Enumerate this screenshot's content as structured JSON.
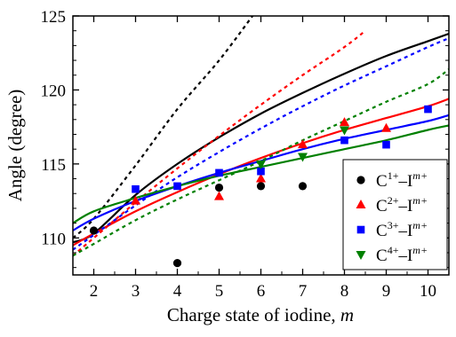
{
  "chart_data": {
    "type": "scatter",
    "title": "",
    "xlabel": "Charge state of iodine, ",
    "xlabel_var": "m",
    "ylabel": "Angle (degree)",
    "xlim": [
      1.5,
      10.5
    ],
    "ylim": [
      107.5,
      125
    ],
    "xticks": [
      2,
      3,
      4,
      5,
      6,
      7,
      8,
      9,
      10
    ],
    "yticks": [
      110,
      115,
      120,
      125
    ],
    "grid": false,
    "legend_position": "bottom-right",
    "series": [
      {
        "name": "C1+–Im+",
        "legend": {
          "base": "C",
          "charge": "1+",
          "dash": "–I",
          "sup": "m+"
        },
        "marker": "circle",
        "color": "#000000",
        "points": [
          [
            2,
            110.5
          ],
          [
            4,
            108.3
          ],
          [
            5,
            113.4
          ],
          [
            6,
            113.5
          ],
          [
            7,
            113.5
          ]
        ],
        "fit_solid": [
          [
            1.5,
            109.7
          ],
          [
            2,
            110.3
          ],
          [
            3,
            112.9
          ],
          [
            4,
            115.0
          ],
          [
            5,
            116.8
          ],
          [
            6,
            118.4
          ],
          [
            7,
            119.8
          ],
          [
            8,
            121.1
          ],
          [
            9,
            122.3
          ],
          [
            10,
            123.3
          ],
          [
            10.5,
            123.8
          ]
        ],
        "fit_dotted": [
          [
            1.5,
            110.0
          ],
          [
            2,
            111.3
          ],
          [
            3,
            114.9
          ],
          [
            4,
            118.7
          ],
          [
            5,
            122.0
          ],
          [
            5.8,
            125.0
          ]
        ]
      },
      {
        "name": "C2+–Im+",
        "legend": {
          "base": "C",
          "charge": "2+",
          "dash": "–I",
          "sup": "m+"
        },
        "marker": "triangle-up",
        "color": "#ff0000",
        "points": [
          [
            3,
            112.5
          ],
          [
            5,
            112.8
          ],
          [
            6,
            114.0
          ],
          [
            7,
            116.3
          ],
          [
            8,
            117.8
          ],
          [
            9,
            117.4
          ]
        ],
        "fit_solid": [
          [
            1.5,
            109.5
          ],
          [
            2,
            110.3
          ],
          [
            3,
            111.8
          ],
          [
            4,
            113.1
          ],
          [
            5,
            114.3
          ],
          [
            6,
            115.4
          ],
          [
            7,
            116.4
          ],
          [
            8,
            117.3
          ],
          [
            9,
            118.1
          ],
          [
            10,
            118.9
          ],
          [
            10.5,
            119.4
          ]
        ],
        "fit_dotted": [
          [
            1.5,
            108.8
          ],
          [
            2,
            110.0
          ],
          [
            3,
            112.4
          ],
          [
            4,
            114.7
          ],
          [
            5,
            116.9
          ],
          [
            6,
            119.0
          ],
          [
            7,
            121.0
          ],
          [
            8,
            122.9
          ],
          [
            8.5,
            124.0
          ]
        ]
      },
      {
        "name": "C3+–Im+",
        "legend": {
          "base": "C",
          "charge": "3+",
          "dash": "–I",
          "sup": "m+"
        },
        "marker": "square",
        "color": "#0000ff",
        "points": [
          [
            3,
            113.3
          ],
          [
            4,
            113.5
          ],
          [
            5,
            114.4
          ],
          [
            6,
            114.5
          ],
          [
            8,
            116.6
          ],
          [
            9,
            116.3
          ],
          [
            10,
            118.7
          ]
        ],
        "fit_solid": [
          [
            1.5,
            110.5
          ],
          [
            2,
            111.3
          ],
          [
            3,
            112.5
          ],
          [
            4,
            113.5
          ],
          [
            5,
            114.4
          ],
          [
            6,
            115.2
          ],
          [
            7,
            116.0
          ],
          [
            8,
            116.7
          ],
          [
            9,
            117.3
          ],
          [
            10,
            117.9
          ],
          [
            10.5,
            118.3
          ]
        ],
        "fit_dotted": [
          [
            1.5,
            109.2
          ],
          [
            2,
            110.2
          ],
          [
            3,
            112.2
          ],
          [
            4,
            114.1
          ],
          [
            5,
            115.8
          ],
          [
            6,
            117.4
          ],
          [
            7,
            118.9
          ],
          [
            8,
            120.3
          ],
          [
            9,
            121.6
          ],
          [
            10,
            122.9
          ],
          [
            10.5,
            123.5
          ]
        ]
      },
      {
        "name": "C4+–Im+",
        "legend": {
          "base": "C",
          "charge": "4+",
          "dash": "–I",
          "sup": "m+"
        },
        "marker": "triangle-down",
        "color": "#008000",
        "points": [
          [
            6,
            115.0
          ],
          [
            7,
            115.5
          ],
          [
            8,
            117.3
          ]
        ],
        "fit_solid": [
          [
            1.5,
            111.0
          ],
          [
            2,
            111.8
          ],
          [
            3,
            112.7
          ],
          [
            4,
            113.5
          ],
          [
            5,
            114.2
          ],
          [
            6,
            114.8
          ],
          [
            7,
            115.4
          ],
          [
            8,
            116.0
          ],
          [
            9,
            116.6
          ],
          [
            10,
            117.3
          ],
          [
            10.5,
            117.6
          ]
        ],
        "fit_dotted": [
          [
            1.5,
            108.8
          ],
          [
            2,
            109.6
          ],
          [
            3,
            111.2
          ],
          [
            4,
            112.6
          ],
          [
            5,
            113.9
          ],
          [
            6,
            115.2
          ],
          [
            7,
            116.6
          ],
          [
            8,
            117.9
          ],
          [
            9,
            119.2
          ],
          [
            10,
            120.4
          ],
          [
            10.5,
            121.4
          ]
        ]
      }
    ]
  }
}
